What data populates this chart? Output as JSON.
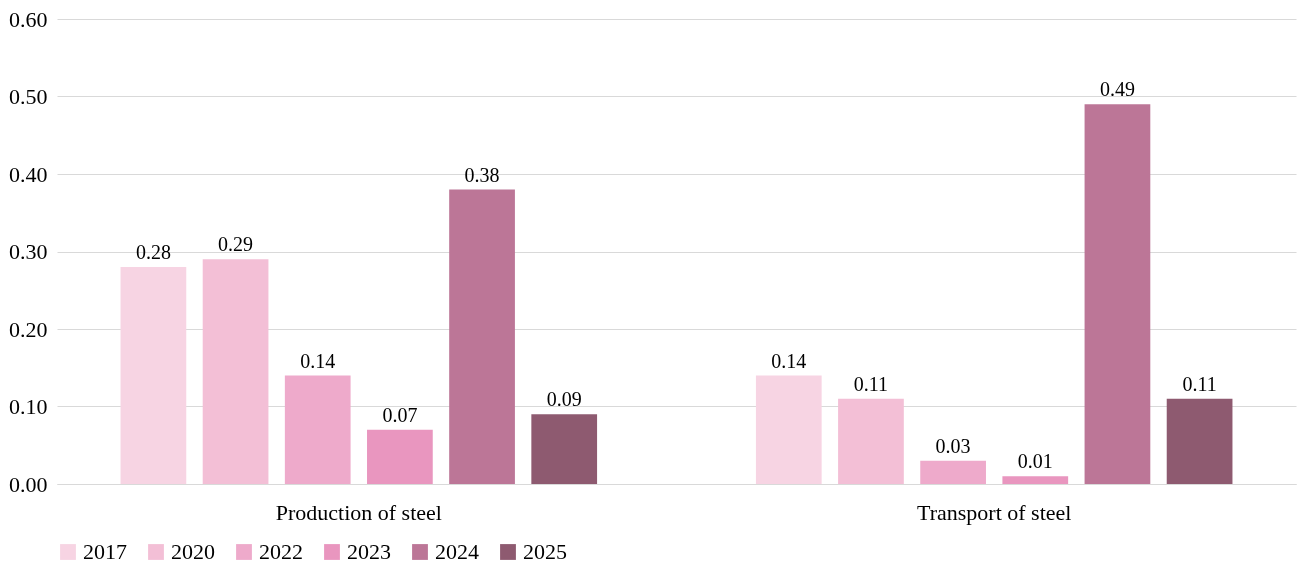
{
  "chart_data": {
    "type": "bar",
    "categories": [
      "Production of steel",
      "Transport of steel"
    ],
    "series": [
      {
        "name": "2017",
        "color": "#f7d4e3",
        "values": [
          0.28,
          0.14
        ]
      },
      {
        "name": "2020",
        "color": "#f3bfd6",
        "values": [
          0.29,
          0.11
        ]
      },
      {
        "name": "2022",
        "color": "#eeaacb",
        "values": [
          0.14,
          0.03
        ]
      },
      {
        "name": "2023",
        "color": "#e996bf",
        "values": [
          0.07,
          0.01
        ]
      },
      {
        "name": "2024",
        "color": "#bc7697",
        "values": [
          0.38,
          0.49
        ]
      },
      {
        "name": "2025",
        "color": "#8e5a70",
        "values": [
          0.09,
          0.11
        ]
      }
    ],
    "ylim": [
      0,
      0.6
    ],
    "yticks": [
      {
        "value": 0,
        "label": "0.00"
      },
      {
        "value": 0.1,
        "label": "0.10"
      },
      {
        "value": 0.2,
        "label": "0.20"
      },
      {
        "value": 0.3,
        "label": "0.30"
      },
      {
        "value": 0.4,
        "label": "0.40"
      },
      {
        "value": 0.5,
        "label": "0.50"
      },
      {
        "value": 0.6,
        "label": "0.60"
      }
    ],
    "grid": "y",
    "legend": "bottom",
    "data_labels": true
  }
}
